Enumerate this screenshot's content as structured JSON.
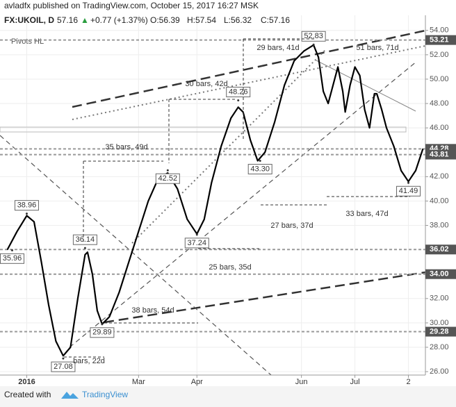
{
  "header": {
    "line1": "avladfx published on TradingView.com, October 15, 2017 16:27 MSK",
    "symbol": "FX:UKOIL, D",
    "last": "57.16",
    "arrow": "▲",
    "change": "+0.77 (+1.37%)",
    "open": "O:56.39",
    "high": "H:57.54",
    "low": "L:56.32",
    "close": "C:57.16"
  },
  "footer": {
    "created": "Created with",
    "brand": "TradingView"
  },
  "chart_data": {
    "type": "line",
    "indicator": "Pivots HL",
    "series": [
      {
        "color": "#000000",
        "x": [
          -8,
          -4,
          0,
          3,
          6,
          9,
          12,
          15,
          18,
          21,
          24,
          25,
          27,
          29,
          31,
          34,
          38,
          42,
          46,
          50,
          54,
          58,
          62,
          66,
          70,
          73,
          76,
          80,
          84,
          87,
          89,
          92,
          95,
          98,
          102,
          106,
          110,
          114,
          118,
          120,
          122,
          124,
          126,
          128,
          130,
          131,
          133,
          135,
          137,
          139,
          141,
          143,
          144,
          146,
          148,
          151,
          154,
          157,
          160,
          163
        ],
        "values": [
          36.0,
          37.5,
          38.8,
          38.3,
          35,
          31.5,
          28.5,
          27.3,
          28,
          32,
          35.6,
          35.8,
          34,
          31,
          29.9,
          30.5,
          32.5,
          35,
          37.5,
          40,
          41.8,
          42.3,
          41,
          38.5,
          37.3,
          38.5,
          41.5,
          44.5,
          46.8,
          47.7,
          47.3,
          45,
          43.3,
          44,
          46.5,
          49.5,
          51.5,
          52.3,
          52.8,
          51.8,
          49,
          48,
          49.5,
          51,
          49,
          47.3,
          49.5,
          51,
          50.3,
          47.5,
          46,
          48.8,
          48.8,
          47.5,
          46,
          44.5,
          42.5,
          41.6,
          42.5,
          44.3
        ]
      }
    ],
    "pivots": {
      "x": [
        -6,
        0,
        15,
        24,
        31,
        58,
        70,
        87,
        96,
        118,
        157
      ],
      "values": [
        35.96,
        38.96,
        27.08,
        36.14,
        29.89,
        42.52,
        37.24,
        48.26,
        43.3,
        52.83,
        41.49
      ],
      "value_labels": [
        "35.96",
        "38.96",
        "27.08",
        "36.14",
        "29.89",
        "42.52",
        "37.24",
        "48.26",
        "43.30",
        "52.83",
        "41.49"
      ]
    },
    "levels": {
      "values": [
        53.21,
        44.28,
        43.81,
        36.02,
        34,
        29.28
      ],
      "value_labels": [
        "53.21",
        "44.28",
        "43.81",
        "36.02",
        "34.00",
        "29.28"
      ]
    },
    "annotations": [
      "29 bars, 41d",
      "51 bars, 71d",
      "30 bars, 42d",
      "35 bars, 49d",
      "27 bars, 37d",
      "33 bars, 47d",
      "25 bars, 35d",
      "38 bars, 54d",
      "bars, 22d"
    ],
    "xlim": [
      -11,
      164
    ],
    "xticks": [
      {
        "value": 0,
        "label": "2016"
      },
      {
        "value": 46,
        "label": "Mar"
      },
      {
        "value": 70,
        "label": "Apr"
      },
      {
        "value": 113,
        "label": "Jun"
      },
      {
        "value": 135,
        "label": "Jul"
      },
      {
        "value": 157,
        "label": "2"
      }
    ],
    "ylim": [
      25.72,
      55.24
    ],
    "yticks": [
      {
        "value": 26,
        "label": "26.00"
      },
      {
        "value": 28,
        "label": "28.00"
      },
      {
        "value": 30,
        "label": "30.00"
      },
      {
        "value": 32,
        "label": "32.00"
      },
      {
        "value": 38,
        "label": "38.00"
      },
      {
        "value": 40,
        "label": "40.00"
      },
      {
        "value": 42,
        "label": "42.00"
      },
      {
        "value": 46,
        "label": "46.00"
      },
      {
        "value": 48,
        "label": "48.00"
      },
      {
        "value": 50,
        "label": "50.00"
      },
      {
        "value": 52,
        "label": "52.00"
      },
      {
        "value": 54,
        "label": "54.00"
      }
    ],
    "grid": true
  }
}
